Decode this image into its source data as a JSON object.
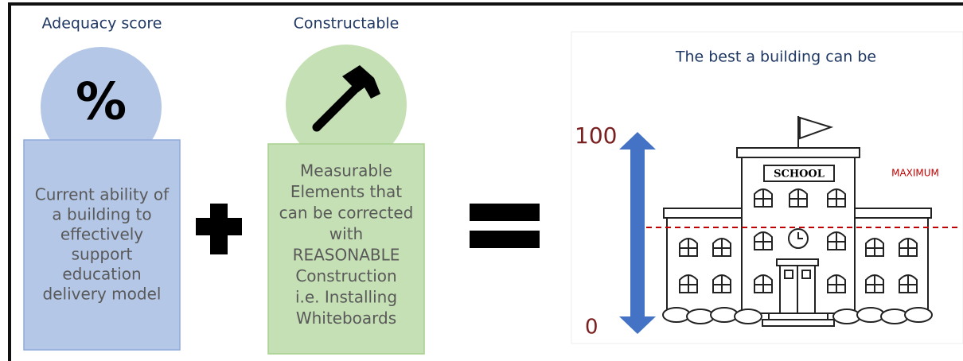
{
  "adequacy": {
    "title": "Adequacy score",
    "icon": "%",
    "lines": [
      "Current ability of",
      "a building to",
      "effectively",
      "support",
      "education",
      "delivery model"
    ]
  },
  "constructable": {
    "title": "Constructable",
    "lines": [
      "Measurable",
      "Elements that",
      "can be corrected",
      "with",
      "REASONABLE",
      "Construction",
      "i.e. Installing",
      "Whiteboards"
    ]
  },
  "result": {
    "title": "The best a building can be",
    "top_label": "100",
    "bottom_label": "0",
    "sign": "SCHOOL",
    "max_label": "MAXIMUM"
  }
}
